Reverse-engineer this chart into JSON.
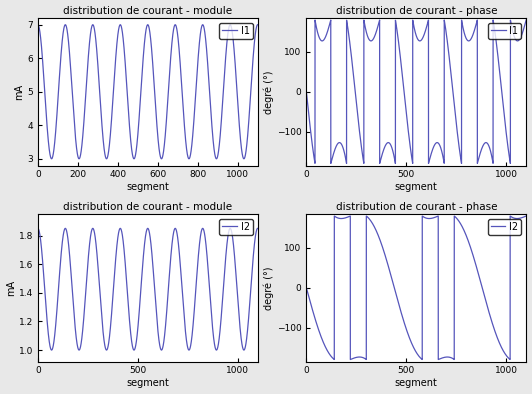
{
  "title1": "distribution de courant - module",
  "title2": "distribution de courant - phase",
  "title3": "distribution de courant - module",
  "title4": "distribution de courant - phase",
  "xlabel": "segment",
  "ylabel_mod": "mA",
  "ylabel_phase": "degré (°)",
  "legend1": "I1",
  "legend2": "I2",
  "n_points": 1100,
  "line_color": "#5555bb",
  "background_color": "#e8e8e8",
  "axes_background": "#ffffff",
  "i1_mod_mean": 5.0,
  "i1_mod_amp": 2.0,
  "i1_mod_cycles": 8.0,
  "i1_phase_cycles": 4.5,
  "i2_mod_mean": 1.425,
  "i2_mod_amp": 0.425,
  "i2_mod_cycles": 8.0,
  "i2_phase_cycles": 2.5,
  "ylim_i1_mod": [
    3,
    7
  ],
  "ylim_i1_phase": [
    -180,
    180
  ],
  "ylim_i2_mod": [
    1.0,
    1.8
  ],
  "ylim_i2_phase": [
    -180,
    180
  ],
  "xticks_mod1": [
    0,
    200,
    400,
    600,
    800,
    1000
  ],
  "xticks_phase1": [
    0,
    500,
    1000
  ],
  "xticks_mod2": [
    0,
    500,
    1000
  ],
  "xticks_phase2": [
    0,
    500,
    1000
  ],
  "yticks_i1_mod": [
    3,
    4,
    5,
    6,
    7
  ],
  "yticks_i1_phase": [
    -100,
    0,
    100
  ],
  "yticks_i2_mod": [
    1.0,
    1.2,
    1.4,
    1.6,
    1.8
  ],
  "yticks_i2_phase": [
    -100,
    0,
    100
  ]
}
